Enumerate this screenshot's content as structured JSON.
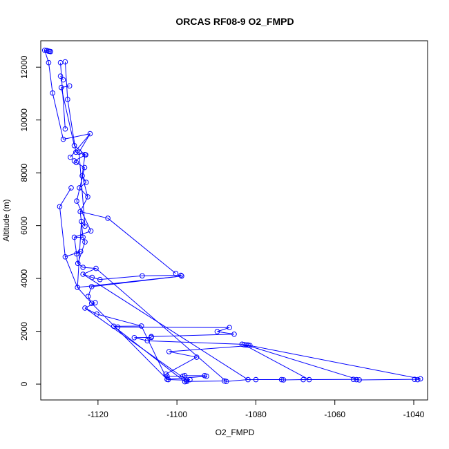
{
  "chart_data": {
    "type": "line",
    "title": "ORCAS RF08-9 O2_FMPD",
    "xlabel": "O2_FMPD",
    "ylabel": "Altitude (m)",
    "xlim": [
      -1134.5,
      -1036.5
    ],
    "ylim": [
      -600,
      13000
    ],
    "x_ticks": [
      -1120,
      -1100,
      -1080,
      -1060,
      -1040
    ],
    "y_ticks": [
      0,
      2000,
      4000,
      6000,
      8000,
      10000,
      12000
    ],
    "x_tick_labels": [
      "-1120",
      "-1100",
      "-1080",
      "-1060",
      "-1040"
    ],
    "y_tick_labels": [
      "0",
      "2000",
      "4000",
      "6000",
      "8000",
      "10000",
      "12000"
    ],
    "marker": "open-circle",
    "series": [
      {
        "color": "#0000ff",
        "points": [
          {
            "x": -1133.5,
            "y": 12640
          },
          {
            "x": -1133.0,
            "y": 12630
          },
          {
            "x": -1132.6,
            "y": 12610
          },
          {
            "x": -1132.3,
            "y": 12600
          },
          {
            "x": -1132.0,
            "y": 12590
          },
          {
            "x": -1132.5,
            "y": 12170
          },
          {
            "x": -1131.5,
            "y": 11020
          },
          {
            "x": -1129.5,
            "y": 12170
          },
          {
            "x": -1128.3,
            "y": 12200
          },
          {
            "x": -1127.2,
            "y": 11290
          },
          {
            "x": -1129.5,
            "y": 11660
          },
          {
            "x": -1128.8,
            "y": 11520
          },
          {
            "x": -1129.3,
            "y": 11230
          },
          {
            "x": -1127.7,
            "y": 10780
          },
          {
            "x": -1128.3,
            "y": 9660
          },
          {
            "x": -1128.8,
            "y": 9270
          },
          {
            "x": -1126.0,
            "y": 9030
          },
          {
            "x": -1125.6,
            "y": 8780
          },
          {
            "x": -1124.8,
            "y": 8780
          },
          {
            "x": -1122.0,
            "y": 9480
          },
          {
            "x": -1123.3,
            "y": 8690
          },
          {
            "x": -1123.1,
            "y": 8680
          },
          {
            "x": -1127.0,
            "y": 8590
          },
          {
            "x": -1126.0,
            "y": 8450
          },
          {
            "x": -1125.5,
            "y": 8390
          },
          {
            "x": -1123.4,
            "y": 8200
          },
          {
            "x": -1124.0,
            "y": 7890
          },
          {
            "x": -1123.0,
            "y": 7640
          },
          {
            "x": -1126.8,
            "y": 7430
          },
          {
            "x": -1124.7,
            "y": 7430
          },
          {
            "x": -1122.6,
            "y": 7090
          },
          {
            "x": -1125.4,
            "y": 6930
          },
          {
            "x": -1129.7,
            "y": 6720
          },
          {
            "x": -1124.5,
            "y": 6530
          },
          {
            "x": -1117.5,
            "y": 6280
          },
          {
            "x": -1124.2,
            "y": 6160
          },
          {
            "x": -1123.3,
            "y": 5980
          },
          {
            "x": -1121.8,
            "y": 5800
          },
          {
            "x": -1126.0,
            "y": 5560
          },
          {
            "x": -1123.8,
            "y": 5560
          },
          {
            "x": -1123.3,
            "y": 5380
          },
          {
            "x": -1125.4,
            "y": 4930
          },
          {
            "x": -1124.4,
            "y": 5020
          },
          {
            "x": -1128.3,
            "y": 4820
          },
          {
            "x": -1125.1,
            "y": 4570
          },
          {
            "x": -1123.8,
            "y": 4420
          },
          {
            "x": -1120.5,
            "y": 4380
          },
          {
            "x": -1123.8,
            "y": 4160
          },
          {
            "x": -1121.5,
            "y": 4040
          },
          {
            "x": -1119.5,
            "y": 3960
          },
          {
            "x": -1108.8,
            "y": 4100
          },
          {
            "x": -1100.3,
            "y": 4190
          },
          {
            "x": -1099.0,
            "y": 4120
          },
          {
            "x": -1098.8,
            "y": 4090
          },
          {
            "x": -1125.2,
            "y": 3660
          },
          {
            "x": -1121.6,
            "y": 3690
          },
          {
            "x": -1122.5,
            "y": 3320
          },
          {
            "x": -1121.6,
            "y": 3060
          },
          {
            "x": -1120.7,
            "y": 3080
          },
          {
            "x": -1123.3,
            "y": 2880
          },
          {
            "x": -1120.3,
            "y": 2650
          },
          {
            "x": -1109.0,
            "y": 2200
          },
          {
            "x": -1116.0,
            "y": 2190
          },
          {
            "x": -1115.0,
            "y": 2160
          },
          {
            "x": -1086.7,
            "y": 2140
          },
          {
            "x": -1089.8,
            "y": 1990
          },
          {
            "x": -1085.5,
            "y": 1890
          },
          {
            "x": -1106.5,
            "y": 1800
          },
          {
            "x": -1106.5,
            "y": 1770
          },
          {
            "x": -1110.8,
            "y": 1760
          },
          {
            "x": -1107.5,
            "y": 1640
          },
          {
            "x": -1083.5,
            "y": 1510
          },
          {
            "x": -1083.0,
            "y": 1490
          },
          {
            "x": -1082.5,
            "y": 1480
          },
          {
            "x": -1082.0,
            "y": 1480
          },
          {
            "x": -1081.5,
            "y": 1460
          },
          {
            "x": -1102.0,
            "y": 1230
          },
          {
            "x": -1095.0,
            "y": 1020
          },
          {
            "x": -1102.8,
            "y": 380
          },
          {
            "x": -1102.5,
            "y": 300
          },
          {
            "x": -1098.5,
            "y": 300
          },
          {
            "x": -1098.0,
            "y": 320
          },
          {
            "x": -1093.0,
            "y": 320
          },
          {
            "x": -1092.5,
            "y": 300
          },
          {
            "x": -1102.5,
            "y": 180
          },
          {
            "x": -1102.2,
            "y": 170
          },
          {
            "x": -1097.5,
            "y": 150
          },
          {
            "x": -1096.7,
            "y": 170
          },
          {
            "x": -1098.0,
            "y": 90
          },
          {
            "x": -1097.5,
            "y": 100
          },
          {
            "x": -1088.0,
            "y": 120
          },
          {
            "x": -1087.5,
            "y": 100
          },
          {
            "x": -1082.0,
            "y": 170
          },
          {
            "x": -1080.0,
            "y": 170
          },
          {
            "x": -1073.5,
            "y": 170
          },
          {
            "x": -1073.0,
            "y": 160
          },
          {
            "x": -1068.0,
            "y": 170
          },
          {
            "x": -1066.5,
            "y": 170
          },
          {
            "x": -1055.3,
            "y": 180
          },
          {
            "x": -1054.5,
            "y": 170
          },
          {
            "x": -1053.8,
            "y": 160
          },
          {
            "x": -1039.8,
            "y": 180
          },
          {
            "x": -1039.0,
            "y": 170
          },
          {
            "x": -1038.3,
            "y": 200
          }
        ],
        "segments": [
          [
            0,
            1
          ],
          [
            1,
            2
          ],
          [
            2,
            3
          ],
          [
            3,
            4
          ],
          [
            0,
            5
          ],
          [
            5,
            6
          ],
          [
            6,
            15
          ],
          [
            15,
            19
          ],
          [
            19,
            22
          ],
          [
            7,
            14
          ],
          [
            8,
            13
          ],
          [
            9,
            12
          ],
          [
            10,
            11
          ],
          [
            12,
            16
          ],
          [
            13,
            17
          ],
          [
            16,
            20
          ],
          [
            17,
            21
          ],
          [
            21,
            23
          ],
          [
            23,
            24
          ],
          [
            24,
            25
          ],
          [
            20,
            26
          ],
          [
            26,
            27
          ],
          [
            27,
            29
          ],
          [
            25,
            31
          ],
          [
            29,
            30
          ],
          [
            30,
            33
          ],
          [
            33,
            34
          ],
          [
            34,
            51
          ],
          [
            31,
            37
          ],
          [
            37,
            38
          ],
          [
            38,
            39
          ],
          [
            39,
            40
          ],
          [
            40,
            44
          ],
          [
            41,
            42
          ],
          [
            42,
            43
          ],
          [
            44,
            45
          ],
          [
            45,
            46
          ],
          [
            46,
            47
          ],
          [
            47,
            48
          ],
          [
            48,
            49
          ],
          [
            49,
            50
          ],
          [
            50,
            52
          ],
          [
            52,
            53
          ],
          [
            53,
            55
          ],
          [
            55,
            56
          ],
          [
            56,
            57
          ],
          [
            57,
            58
          ],
          [
            58,
            59
          ],
          [
            59,
            60
          ],
          [
            60,
            61
          ],
          [
            61,
            62
          ],
          [
            62,
            63
          ],
          [
            63,
            64
          ],
          [
            64,
            65
          ],
          [
            65,
            66
          ],
          [
            66,
            67
          ],
          [
            67,
            68
          ],
          [
            68,
            69
          ],
          [
            69,
            70
          ],
          [
            70,
            71
          ],
          [
            71,
            72
          ],
          [
            72,
            73
          ],
          [
            73,
            74
          ],
          [
            74,
            75
          ],
          [
            75,
            76
          ],
          [
            76,
            77
          ],
          [
            77,
            78
          ],
          [
            78,
            79
          ],
          [
            79,
            80
          ],
          [
            80,
            81
          ],
          [
            81,
            82
          ],
          [
            82,
            83
          ],
          [
            83,
            84
          ],
          [
            84,
            85
          ],
          [
            85,
            86
          ],
          [
            86,
            87
          ],
          [
            87,
            88
          ],
          [
            88,
            89
          ],
          [
            89,
            90
          ],
          [
            90,
            91
          ],
          [
            91,
            92
          ],
          [
            92,
            93
          ],
          [
            93,
            94
          ],
          [
            94,
            95
          ],
          [
            95,
            96
          ],
          [
            96,
            97
          ],
          [
            97,
            98
          ],
          [
            98,
            99
          ],
          [
            99,
            100
          ],
          [
            100,
            101
          ],
          [
            101,
            102
          ],
          [
            102,
            103
          ],
          [
            103,
            104
          ],
          [
            104,
            105
          ],
          [
            105,
            106
          ],
          [
            106,
            107
          ],
          [
            107,
            108
          ],
          [
            73,
            100
          ],
          [
            73,
            104
          ],
          [
            74,
            108
          ],
          [
            75,
            103
          ],
          [
            72,
            97
          ],
          [
            28,
            32
          ],
          [
            32,
            43
          ],
          [
            54,
            35
          ],
          [
            35,
            36
          ],
          [
            36,
            18
          ],
          [
            18,
            19
          ],
          [
            26,
            30
          ],
          [
            43,
            54
          ],
          [
            54,
            57
          ],
          [
            57,
            84
          ],
          [
            59,
            86
          ],
          [
            61,
            84
          ],
          [
            62,
            88
          ],
          [
            47,
            92
          ],
          [
            46,
            91
          ],
          [
            53,
            54
          ],
          [
            33,
            39
          ],
          [
            38,
            44
          ]
        ]
      }
    ],
    "grid": false,
    "legend": "none"
  }
}
